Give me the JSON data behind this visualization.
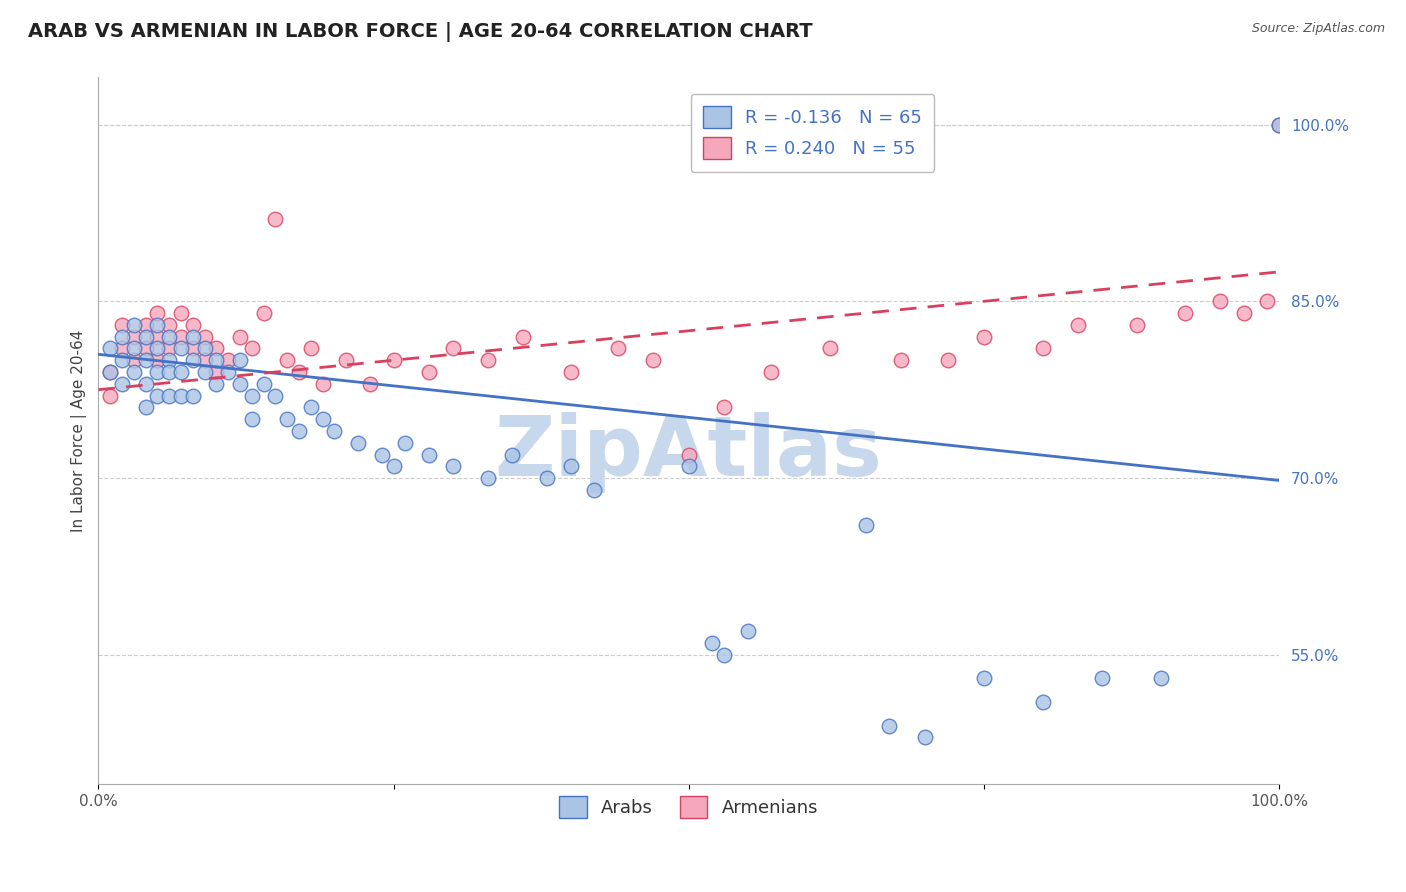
{
  "title": "ARAB VS ARMENIAN IN LABOR FORCE | AGE 20-64 CORRELATION CHART",
  "source": "Source: ZipAtlas.com",
  "ylabel": "In Labor Force | Age 20-64",
  "xlim": [
    0.0,
    1.0
  ],
  "ylim": [
    0.44,
    1.04
  ],
  "arab_R": -0.136,
  "arab_N": 65,
  "armenian_R": 0.24,
  "armenian_N": 55,
  "arab_color": "#aac4e4",
  "armenian_color": "#f5a8bc",
  "arab_line_color": "#4472c4",
  "armenian_line_color": "#d94060",
  "legend_text_color": "#4472c4",
  "background_color": "#ffffff",
  "grid_color": "#cccccc",
  "title_fontsize": 14,
  "axis_label_fontsize": 11,
  "tick_fontsize": 11,
  "legend_fontsize": 13,
  "watermark_text": "ZipAtlas",
  "watermark_color": "#c8d8ec",
  "watermark_fontsize": 60,
  "arab_x": [
    0.01,
    0.01,
    0.02,
    0.02,
    0.02,
    0.03,
    0.03,
    0.03,
    0.04,
    0.04,
    0.04,
    0.04,
    0.05,
    0.05,
    0.05,
    0.05,
    0.06,
    0.06,
    0.06,
    0.06,
    0.07,
    0.07,
    0.07,
    0.08,
    0.08,
    0.08,
    0.09,
    0.09,
    0.1,
    0.1,
    0.11,
    0.12,
    0.12,
    0.13,
    0.13,
    0.14,
    0.15,
    0.16,
    0.17,
    0.18,
    0.19,
    0.2,
    0.22,
    0.24,
    0.25,
    0.26,
    0.28,
    0.3,
    0.33,
    0.35,
    0.38,
    0.4,
    0.42,
    0.5,
    0.52,
    0.53,
    0.55,
    0.65,
    0.67,
    0.7,
    0.75,
    0.8,
    0.85,
    0.9,
    1.0
  ],
  "arab_y": [
    0.81,
    0.79,
    0.82,
    0.8,
    0.78,
    0.83,
    0.81,
    0.79,
    0.82,
    0.8,
    0.78,
    0.76,
    0.83,
    0.81,
    0.79,
    0.77,
    0.82,
    0.8,
    0.79,
    0.77,
    0.81,
    0.79,
    0.77,
    0.82,
    0.8,
    0.77,
    0.81,
    0.79,
    0.8,
    0.78,
    0.79,
    0.8,
    0.78,
    0.77,
    0.75,
    0.78,
    0.77,
    0.75,
    0.74,
    0.76,
    0.75,
    0.74,
    0.73,
    0.72,
    0.71,
    0.73,
    0.72,
    0.71,
    0.7,
    0.72,
    0.7,
    0.71,
    0.69,
    0.71,
    0.56,
    0.55,
    0.57,
    0.66,
    0.49,
    0.48,
    0.53,
    0.51,
    0.53,
    0.53,
    1.0
  ],
  "armenian_x": [
    0.01,
    0.01,
    0.02,
    0.02,
    0.03,
    0.03,
    0.04,
    0.04,
    0.05,
    0.05,
    0.05,
    0.06,
    0.06,
    0.07,
    0.07,
    0.08,
    0.08,
    0.09,
    0.09,
    0.1,
    0.1,
    0.11,
    0.12,
    0.13,
    0.14,
    0.15,
    0.16,
    0.17,
    0.18,
    0.19,
    0.21,
    0.23,
    0.25,
    0.28,
    0.3,
    0.33,
    0.36,
    0.4,
    0.44,
    0.47,
    0.5,
    0.53,
    0.57,
    0.62,
    0.68,
    0.72,
    0.75,
    0.8,
    0.83,
    0.88,
    0.92,
    0.95,
    0.97,
    0.99,
    1.0
  ],
  "armenian_y": [
    0.79,
    0.77,
    0.83,
    0.81,
    0.82,
    0.8,
    0.83,
    0.81,
    0.84,
    0.82,
    0.8,
    0.83,
    0.81,
    0.84,
    0.82,
    0.83,
    0.81,
    0.82,
    0.8,
    0.81,
    0.79,
    0.8,
    0.82,
    0.81,
    0.84,
    0.92,
    0.8,
    0.79,
    0.81,
    0.78,
    0.8,
    0.78,
    0.8,
    0.79,
    0.81,
    0.8,
    0.82,
    0.79,
    0.81,
    0.8,
    0.72,
    0.76,
    0.79,
    0.81,
    0.8,
    0.8,
    0.82,
    0.81,
    0.83,
    0.83,
    0.84,
    0.85,
    0.84,
    0.85,
    1.0
  ],
  "arab_line_start_y": 0.805,
  "arab_line_end_y": 0.698,
  "armenian_line_start_y": 0.775,
  "armenian_line_end_y": 0.875
}
